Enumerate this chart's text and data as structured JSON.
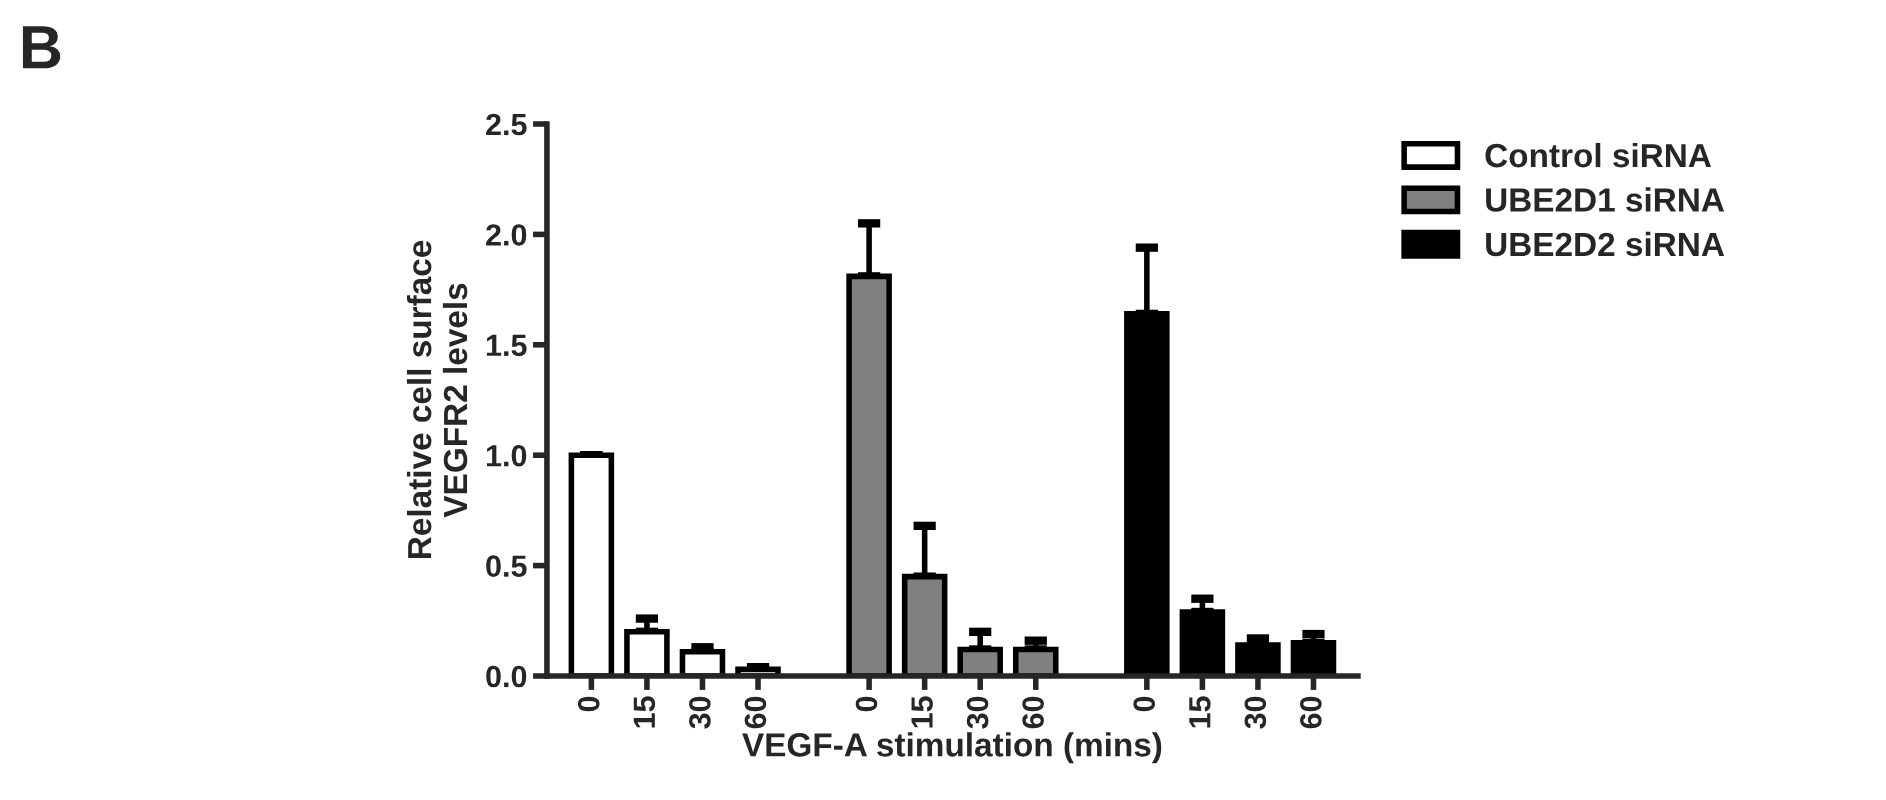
{
  "chart_data": {
    "type": "bar",
    "xlabel": "VEGF-A stimulation (mins)",
    "ylabel": "Relative cell surface\nVEGFR2 levels",
    "annotations": [
      "B"
    ],
    "categories": [
      "0",
      "15",
      "30",
      "60",
      null,
      "0",
      "15",
      "30",
      "60",
      null,
      "0",
      "15",
      "30",
      "60"
    ],
    "series": [
      {
        "name": "Control siRNA",
        "color": "#ffffff",
        "values": [
          1.0,
          0.2,
          0.11,
          0.03,
          null,
          null,
          null,
          null,
          null,
          null,
          null,
          null,
          null,
          null
        ],
        "errors": [
          [
            1.0,
            1.0
          ],
          [
            0.2,
            0.26
          ],
          [
            0.11,
            0.13
          ],
          [
            0.03,
            0.04
          ],
          null,
          null,
          null,
          null,
          null,
          null,
          null,
          null,
          null,
          null
        ]
      },
      {
        "name": "UBE2D1 siRNA",
        "color": "#808080",
        "values": [
          null,
          null,
          null,
          null,
          null,
          1.81,
          0.45,
          0.12,
          0.12,
          null,
          null,
          null,
          null,
          null
        ],
        "errors": [
          null,
          null,
          null,
          null,
          null,
          [
            1.81,
            2.05
          ],
          [
            0.45,
            0.68
          ],
          [
            0.12,
            0.2
          ],
          [
            0.12,
            0.16
          ],
          null,
          null,
          null,
          null,
          null
        ]
      },
      {
        "name": "UBE2D2 siRNA",
        "color": "#000000",
        "values": [
          null,
          null,
          null,
          null,
          null,
          null,
          null,
          null,
          null,
          null,
          1.64,
          0.29,
          0.14,
          0.15
        ],
        "errors": [
          null,
          null,
          null,
          null,
          null,
          null,
          null,
          null,
          null,
          null,
          [
            1.64,
            1.94
          ],
          [
            0.29,
            0.35
          ],
          [
            0.14,
            0.17
          ],
          [
            0.15,
            0.19
          ]
        ]
      }
    ],
    "ylim": [
      0,
      2.5
    ],
    "yticks": [
      {
        "value": 0,
        "label": "0.0"
      },
      {
        "value": 0.5,
        "label": "0.5"
      },
      {
        "value": 1,
        "label": "1.0"
      },
      {
        "value": 1.5,
        "label": "1.5"
      },
      {
        "value": 2,
        "label": "2.0"
      },
      {
        "value": 2.5,
        "label": "2.5"
      }
    ],
    "legend": "right",
    "grid": false
  }
}
